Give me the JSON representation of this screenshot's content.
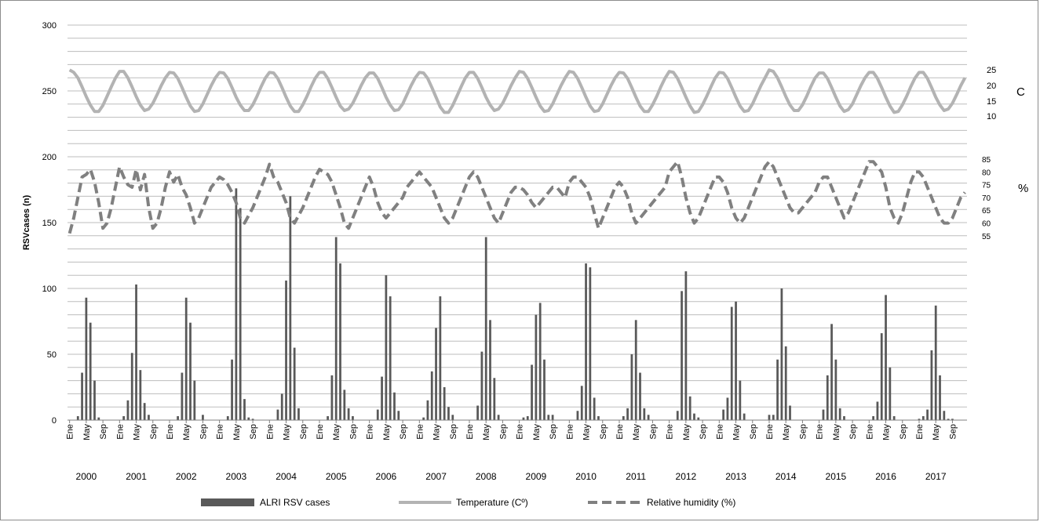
{
  "chart_data": {
    "type": "bar",
    "ylabel": "RSVcases (n)",
    "ylim": [
      0,
      300
    ],
    "yticks": [
      "0",
      "50",
      "100",
      "150",
      "200",
      "250",
      "300"
    ],
    "month_ticks": [
      "Ene",
      "May",
      "Sep"
    ],
    "years": [
      "2000",
      "2001",
      "2002",
      "2003",
      "2004",
      "2005",
      "2006",
      "2007",
      "2008",
      "2009",
      "2010",
      "2011",
      "2012",
      "2013",
      "2014",
      "2015",
      "2016",
      "2017"
    ],
    "temperature_axis": {
      "ticks": [
        "25",
        "20",
        "15",
        "10"
      ],
      "unit": "C"
    },
    "humidity_axis": {
      "ticks": [
        "85",
        "80",
        "75",
        "70",
        "65",
        "60",
        "55"
      ],
      "unit": "%"
    },
    "grid": true,
    "legend": {
      "placement": "bottom"
    },
    "series": [
      {
        "name": "ALRI RSV cases",
        "kind": "bar",
        "color": "#595959",
        "values": [
          0,
          0,
          3,
          36,
          93,
          74,
          30,
          2,
          0,
          0,
          0,
          0,
          0,
          3,
          15,
          51,
          103,
          38,
          13,
          4,
          0,
          0,
          0,
          0,
          0,
          0,
          3,
          36,
          93,
          74,
          30,
          0,
          4,
          0,
          0,
          0,
          0,
          0,
          3,
          46,
          176,
          161,
          16,
          2,
          1,
          0,
          0,
          0,
          0,
          0,
          8,
          20,
          106,
          170,
          55,
          9,
          0,
          0,
          0,
          0,
          0,
          0,
          3,
          34,
          139,
          119,
          23,
          9,
          3,
          0,
          0,
          0,
          0,
          0,
          8,
          33,
          110,
          94,
          21,
          7,
          0,
          0,
          0,
          0,
          0,
          2,
          15,
          37,
          70,
          94,
          25,
          10,
          4,
          0,
          0,
          0,
          0,
          0,
          11,
          52,
          139,
          76,
          32,
          4,
          0,
          0,
          0,
          0,
          0,
          2,
          3,
          42,
          80,
          89,
          46,
          4,
          4,
          0,
          0,
          0,
          0,
          0,
          7,
          26,
          119,
          116,
          17,
          3,
          0,
          0,
          0,
          0,
          0,
          3,
          9,
          50,
          76,
          36,
          9,
          4,
          0,
          0,
          0,
          0,
          0,
          0,
          7,
          98,
          113,
          18,
          5,
          2,
          0,
          0,
          0,
          0,
          0,
          8,
          17,
          86,
          90,
          30,
          5,
          0,
          0,
          0,
          0,
          0,
          4,
          4,
          46,
          100,
          56,
          11,
          0,
          0,
          0,
          0,
          0,
          0,
          0,
          8,
          34,
          73,
          46,
          9,
          3,
          0,
          0,
          0,
          0,
          0,
          0,
          3,
          14,
          66,
          95,
          40,
          3,
          0,
          0,
          0,
          0,
          0,
          1,
          3,
          8,
          53,
          87,
          34,
          7,
          1,
          1,
          0,
          0,
          0
        ]
      },
      {
        "name": "Temperature (Cº)",
        "kind": "line",
        "color": "#b3b3b3",
        "values": [
          25.2,
          24.4,
          22.6,
          19.6,
          16.4,
          13.6,
          11.5,
          11.5,
          13.5,
          16.5,
          19.6,
          22.5,
          24.7,
          24.7,
          22.6,
          19.6,
          16.4,
          13.6,
          11.8,
          12.3,
          14.2,
          17.0,
          20.0,
          22.6,
          24.4,
          24.2,
          22.4,
          19.4,
          16.2,
          13.3,
          11.5,
          11.8,
          14.0,
          17.0,
          20.0,
          22.6,
          24.4,
          24.2,
          22.4,
          19.4,
          16.2,
          13.6,
          11.8,
          11.8,
          13.7,
          16.5,
          19.7,
          22.5,
          24.4,
          24.2,
          22.4,
          19.4,
          16.2,
          13.3,
          11.5,
          11.5,
          13.7,
          16.5,
          19.7,
          22.5,
          24.4,
          24.4,
          22.4,
          19.4,
          16.2,
          13.3,
          11.8,
          12.3,
          14.2,
          17.0,
          20.0,
          22.6,
          24.2,
          24.2,
          22.4,
          19.4,
          16.2,
          13.6,
          11.8,
          12.1,
          14.0,
          17.0,
          20.0,
          22.6,
          24.4,
          24.2,
          22.4,
          19.4,
          16.2,
          13.0,
          11.2,
          11.2,
          13.5,
          16.5,
          19.6,
          22.5,
          24.4,
          24.4,
          22.4,
          19.4,
          16.2,
          13.6,
          11.8,
          12.3,
          14.2,
          17.0,
          20.0,
          22.6,
          24.7,
          24.4,
          22.4,
          19.4,
          16.2,
          13.3,
          11.5,
          11.8,
          14.0,
          17.0,
          20.0,
          22.6,
          24.7,
          24.4,
          22.4,
          19.4,
          16.2,
          13.3,
          11.5,
          11.8,
          14.0,
          17.0,
          20.0,
          22.6,
          24.4,
          24.2,
          22.4,
          19.4,
          16.2,
          13.3,
          11.5,
          11.5,
          13.7,
          16.5,
          19.7,
          22.5,
          24.7,
          24.4,
          22.4,
          19.4,
          16.2,
          13.3,
          11.2,
          11.5,
          13.7,
          16.5,
          19.6,
          22.5,
          24.4,
          24.2,
          22.4,
          19.4,
          16.2,
          13.3,
          11.5,
          11.8,
          14.0,
          17.0,
          20.0,
          22.6,
          25.2,
          24.7,
          22.6,
          19.6,
          16.4,
          13.6,
          11.8,
          11.8,
          13.7,
          16.5,
          19.7,
          22.5,
          24.2,
          24.2,
          22.4,
          19.4,
          16.2,
          13.3,
          11.5,
          12.1,
          14.0,
          17.0,
          20.0,
          22.6,
          24.4,
          24.4,
          22.4,
          19.4,
          16.2,
          13.3,
          11.2,
          11.5,
          13.7,
          16.5,
          19.7,
          22.5,
          24.4,
          24.4,
          22.4,
          19.4,
          16.2,
          13.6,
          11.8,
          12.3,
          14.2,
          17.0,
          20.0,
          22.6
        ]
      },
      {
        "name": "Relative humidity (%)",
        "kind": "line",
        "dashed": true,
        "color": "#808080",
        "values": [
          56,
          62,
          70,
          78,
          79,
          81,
          76,
          68,
          58,
          60,
          66,
          74,
          82,
          78,
          75,
          74,
          81,
          73,
          79,
          66,
          58,
          60,
          66,
          74,
          80,
          76,
          79,
          74,
          71,
          66,
          60,
          62,
          66,
          70,
          74,
          76,
          78,
          77,
          75,
          72,
          68,
          62,
          60,
          63,
          66,
          70,
          74,
          78,
          83,
          78,
          76,
          72,
          68,
          62,
          60,
          63,
          66,
          70,
          74,
          78,
          81,
          80,
          79,
          76,
          71,
          66,
          60,
          58,
          62,
          66,
          70,
          74,
          78,
          74,
          68,
          64,
          62,
          64,
          66,
          68,
          70,
          74,
          76,
          78,
          80,
          78,
          76,
          74,
          70,
          66,
          62,
          60,
          62,
          66,
          70,
          74,
          78,
          80,
          78,
          74,
          70,
          66,
          62,
          60,
          64,
          68,
          72,
          74,
          74,
          73,
          71,
          68,
          66,
          68,
          70,
          72,
          74,
          74,
          72,
          70,
          76,
          78,
          78,
          76,
          74,
          70,
          64,
          58,
          62,
          66,
          70,
          74,
          76,
          74,
          70,
          64,
          60,
          62,
          64,
          66,
          68,
          70,
          72,
          74,
          80,
          82,
          84,
          78,
          70,
          64,
          60,
          62,
          66,
          70,
          74,
          78,
          78,
          76,
          72,
          66,
          62,
          60,
          62,
          66,
          70,
          74,
          78,
          82,
          84,
          82,
          78,
          74,
          70,
          66,
          64,
          64,
          66,
          68,
          70,
          72,
          76,
          78,
          78,
          74,
          70,
          66,
          62,
          64,
          68,
          72,
          76,
          80,
          84,
          84,
          82,
          80,
          74,
          66,
          62,
          60,
          64,
          70,
          76,
          80,
          80,
          78,
          74,
          70,
          66,
          62,
          60,
          60,
          62,
          66,
          70,
          72
        ]
      }
    ]
  }
}
